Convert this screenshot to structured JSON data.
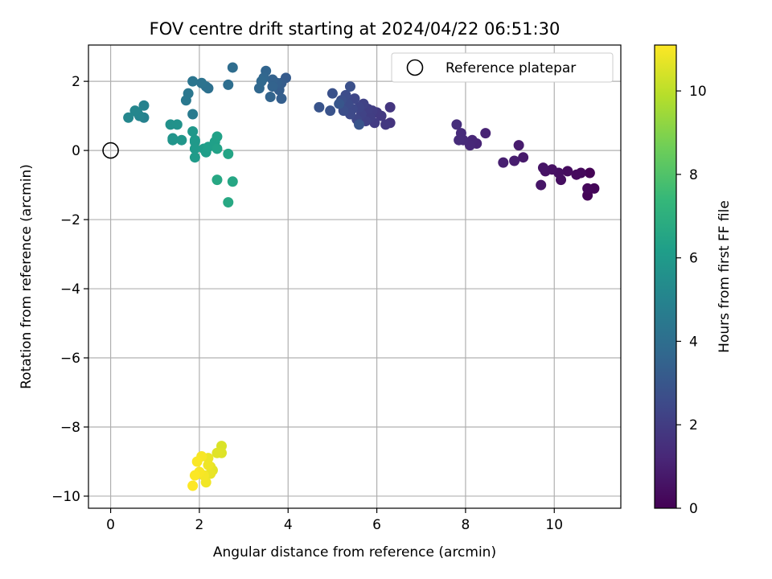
{
  "chart_data": {
    "type": "scatter",
    "title": "FOV centre drift starting at 2024/04/22 06:51:30",
    "xlabel": "Angular distance from reference (arcmin)",
    "ylabel": "Rotation from reference (arcmin)",
    "xlim": [
      -0.5,
      11.5
    ],
    "ylim": [
      -10.35,
      3.05
    ],
    "xticks": [
      0,
      2,
      4,
      6,
      8,
      10
    ],
    "yticks": [
      2,
      0,
      -2,
      -4,
      -6,
      -8,
      -10
    ],
    "xtick_labels": [
      "0",
      "2",
      "4",
      "6",
      "8",
      "10"
    ],
    "ytick_labels": [
      "2",
      "0",
      "−2",
      "−4",
      "−6",
      "−8",
      "−10"
    ],
    "grid": true,
    "legend": {
      "placement": "top-right",
      "entries": [
        "Reference platepar"
      ]
    },
    "colorbar": {
      "label": "Hours from first FF file",
      "range": [
        0,
        11.1
      ],
      "ticks": [
        0,
        2,
        4,
        6,
        8,
        10
      ],
      "tick_labels": [
        "0",
        "2",
        "4",
        "6",
        "8",
        "10"
      ],
      "colormap": "viridis"
    },
    "reference_point": {
      "x": 0,
      "y": 0
    },
    "series": [
      {
        "points": [
          [
            10.8,
            -0.65,
            0.05
          ],
          [
            10.75,
            -1.3,
            0.1
          ],
          [
            10.9,
            -1.1,
            0.15
          ],
          [
            10.75,
            -1.1,
            0.2
          ],
          [
            10.6,
            -0.65,
            0.25
          ],
          [
            10.5,
            -0.7,
            0.3
          ],
          [
            10.3,
            -0.6,
            0.35
          ],
          [
            10.15,
            -0.85,
            0.4
          ],
          [
            10.1,
            -0.65,
            0.45
          ],
          [
            9.95,
            -0.55,
            0.5
          ],
          [
            9.8,
            -0.6,
            0.55
          ],
          [
            9.75,
            -0.5,
            0.6
          ],
          [
            9.7,
            -1.0,
            0.65
          ],
          [
            9.3,
            -0.2,
            0.8
          ],
          [
            9.2,
            0.15,
            0.85
          ],
          [
            9.1,
            -0.3,
            0.9
          ],
          [
            8.85,
            -0.35,
            0.95
          ],
          [
            8.45,
            0.5,
            1.1
          ],
          [
            8.25,
            0.2,
            1.15
          ],
          [
            8.15,
            0.3,
            1.2
          ],
          [
            8.1,
            0.15,
            1.25
          ],
          [
            7.95,
            0.3,
            1.3
          ],
          [
            7.9,
            0.5,
            1.35
          ],
          [
            7.85,
            0.3,
            1.4
          ],
          [
            7.8,
            0.75,
            1.45
          ],
          [
            6.3,
            0.8,
            1.7
          ],
          [
            6.3,
            1.25,
            1.75
          ],
          [
            6.2,
            0.75,
            1.8
          ],
          [
            6.1,
            1.0,
            1.85
          ],
          [
            6.0,
            1.1,
            1.9
          ],
          [
            5.95,
            0.8,
            1.95
          ],
          [
            5.9,
            1.15,
            2.0
          ],
          [
            5.85,
            0.95,
            2.05
          ],
          [
            5.8,
            1.2,
            2.1
          ],
          [
            5.75,
            0.85,
            2.15
          ],
          [
            5.7,
            1.35,
            2.2
          ],
          [
            5.65,
            1.05,
            2.25
          ],
          [
            5.6,
            1.25,
            2.3
          ],
          [
            5.55,
            0.9,
            2.35
          ],
          [
            5.5,
            1.5,
            2.4
          ],
          [
            5.45,
            1.2,
            2.45
          ],
          [
            5.4,
            1.05,
            2.5
          ],
          [
            5.35,
            1.35,
            2.55
          ],
          [
            5.3,
            1.6,
            2.6
          ],
          [
            5.25,
            1.15,
            2.65
          ],
          [
            5.2,
            1.45,
            2.7
          ],
          [
            5.4,
            1.85,
            2.75
          ],
          [
            5.0,
            1.65,
            2.8
          ],
          [
            4.95,
            1.15,
            2.85
          ],
          [
            4.7,
            1.25,
            2.9
          ],
          [
            5.6,
            0.75,
            2.95
          ],
          [
            5.15,
            1.35,
            3.0
          ],
          [
            3.95,
            2.1,
            3.2
          ],
          [
            3.85,
            1.95,
            3.25
          ],
          [
            3.8,
            1.75,
            3.3
          ],
          [
            3.85,
            1.5,
            3.35
          ],
          [
            3.75,
            1.95,
            3.4
          ],
          [
            3.65,
            2.05,
            3.45
          ],
          [
            3.65,
            1.85,
            3.5
          ],
          [
            3.6,
            1.55,
            3.55
          ],
          [
            3.5,
            2.3,
            3.6
          ],
          [
            3.45,
            2.1,
            3.65
          ],
          [
            3.35,
            1.8,
            3.7
          ],
          [
            3.4,
            2.0,
            3.75
          ],
          [
            2.75,
            2.4,
            3.95
          ],
          [
            2.65,
            1.9,
            4.0
          ],
          [
            2.2,
            1.8,
            4.1
          ],
          [
            2.15,
            1.85,
            4.15
          ],
          [
            2.05,
            1.95,
            4.2
          ],
          [
            1.85,
            2.0,
            4.3
          ],
          [
            1.75,
            1.65,
            4.4
          ],
          [
            1.7,
            1.45,
            4.45
          ],
          [
            1.85,
            1.05,
            4.55
          ],
          [
            0.75,
            0.95,
            4.9
          ],
          [
            0.75,
            1.3,
            4.95
          ],
          [
            0.65,
            1.0,
            5.0
          ],
          [
            0.6,
            1.1,
            5.05
          ],
          [
            0.55,
            1.15,
            5.1
          ],
          [
            0.4,
            0.95,
            5.15
          ],
          [
            1.35,
            0.75,
            5.6
          ],
          [
            1.5,
            0.75,
            5.65
          ],
          [
            1.4,
            0.35,
            5.7
          ],
          [
            1.4,
            0.3,
            5.75
          ],
          [
            1.6,
            0.3,
            5.8
          ],
          [
            1.85,
            0.55,
            5.85
          ],
          [
            1.9,
            0.3,
            5.9
          ],
          [
            1.9,
            0.25,
            5.95
          ],
          [
            1.9,
            0.05,
            6.0
          ],
          [
            1.9,
            -0.2,
            6.05
          ],
          [
            2.1,
            0.05,
            6.1
          ],
          [
            2.15,
            -0.05,
            6.15
          ],
          [
            2.2,
            0.1,
            6.2
          ],
          [
            2.35,
            0.25,
            6.25
          ],
          [
            2.4,
            0.4,
            6.3
          ],
          [
            2.4,
            0.05,
            6.35
          ],
          [
            2.65,
            -0.1,
            6.45
          ],
          [
            2.75,
            -0.9,
            6.55
          ],
          [
            2.4,
            -0.85,
            6.6
          ],
          [
            2.65,
            -1.5,
            6.65
          ],
          [
            2.5,
            -8.55,
            10.5
          ],
          [
            2.5,
            -8.75,
            10.55
          ],
          [
            2.4,
            -8.75,
            10.6
          ],
          [
            2.3,
            -9.25,
            10.65
          ],
          [
            2.25,
            -9.15,
            10.7
          ],
          [
            2.25,
            -9.35,
            10.75
          ],
          [
            2.2,
            -8.9,
            10.8
          ],
          [
            2.2,
            -9.1,
            10.85
          ],
          [
            2.15,
            -9.6,
            10.9
          ],
          [
            2.1,
            -9.4,
            10.95
          ],
          [
            2.05,
            -8.85,
            11.0
          ],
          [
            2.0,
            -9.3,
            11.02
          ],
          [
            1.95,
            -9.0,
            11.05
          ],
          [
            1.9,
            -9.4,
            11.07
          ],
          [
            1.85,
            -9.7,
            11.1
          ]
        ]
      }
    ]
  },
  "colors": {
    "reference_marker": "#000000",
    "grid": "#b0b0b0",
    "axes": "#000000",
    "legend_border": "#cccccc",
    "viridis": [
      "#440154",
      "#482878",
      "#3e4989",
      "#31688e",
      "#26828e",
      "#1f9e89",
      "#35b779",
      "#6ece58",
      "#b5de2b",
      "#fde725"
    ]
  }
}
